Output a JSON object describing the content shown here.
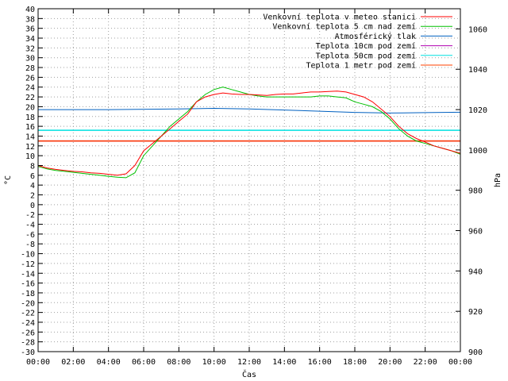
{
  "chart_data": {
    "type": "line",
    "xlabel": "Čas",
    "ylabel": "°C",
    "y2label": "hPa",
    "x_ticks": [
      "00:00",
      "02:00",
      "04:00",
      "06:00",
      "08:00",
      "10:00",
      "12:00",
      "14:00",
      "16:00",
      "18:00",
      "20:00",
      "22:00",
      "00:00"
    ],
    "xlim": [
      0,
      24
    ],
    "ylim": [
      -30,
      40
    ],
    "y_ticks": [
      40,
      38,
      36,
      34,
      32,
      30,
      28,
      26,
      24,
      22,
      20,
      18,
      16,
      14,
      12,
      10,
      8,
      6,
      4,
      2,
      0,
      -2,
      -4,
      -6,
      -8,
      -10,
      -12,
      -14,
      -16,
      -18,
      -20,
      -22,
      -24,
      -26,
      -28,
      -30
    ],
    "y2lim": [
      900,
      1070
    ],
    "y2_ticks": [
      1060,
      1040,
      1020,
      1000,
      980,
      960,
      940,
      920,
      900
    ],
    "legend_position": "top-right",
    "series": [
      {
        "name": "Venkovní teplota v meteo stanici",
        "color": "#ff0000",
        "axis": "y",
        "x": [
          0,
          0.5,
          1,
          1.5,
          2,
          2.5,
          3,
          3.5,
          4,
          4.5,
          5,
          5.5,
          6,
          6.5,
          7,
          7.5,
          8,
          8.5,
          9,
          9.5,
          10,
          10.5,
          11,
          11.5,
          12,
          12.5,
          13,
          13.5,
          14,
          14.5,
          15,
          15.5,
          16,
          16.5,
          17,
          17.5,
          18,
          18.5,
          19,
          19.5,
          20,
          20.5,
          21,
          21.5,
          22,
          22.5,
          23,
          23.5,
          24
        ],
        "y": [
          8,
          7.5,
          7.2,
          7,
          6.8,
          6.7,
          6.5,
          6.4,
          6.2,
          6,
          6.3,
          8,
          11,
          12.5,
          14,
          15.5,
          17,
          18.5,
          21,
          22,
          22.5,
          22.8,
          22.6,
          22.5,
          22.5,
          22.4,
          22.3,
          22.5,
          22.6,
          22.6,
          22.8,
          23,
          23,
          23.1,
          23.2,
          23,
          22.5,
          22,
          21,
          19.5,
          18,
          16,
          14.5,
          13.5,
          12.8,
          12,
          11.5,
          11,
          10.5
        ]
      },
      {
        "name": "Venkovní teplota 5 cm nad zemí",
        "color": "#00c000",
        "axis": "y",
        "x": [
          0,
          0.5,
          1,
          1.5,
          2,
          2.5,
          3,
          3.5,
          4,
          4.5,
          5,
          5.5,
          6,
          6.5,
          7,
          7.5,
          8,
          8.5,
          9,
          9.5,
          10,
          10.5,
          11,
          11.5,
          12,
          12.5,
          13,
          13.5,
          14,
          14.5,
          15,
          15.5,
          16,
          16.5,
          17,
          17.5,
          18,
          18.5,
          19,
          19.5,
          20,
          20.5,
          21,
          21.5,
          22,
          22.5,
          23,
          23.5,
          24
        ],
        "y": [
          7.8,
          7.3,
          7,
          6.8,
          6.6,
          6.4,
          6.2,
          6,
          5.8,
          5.6,
          5.5,
          6.5,
          10,
          12,
          14,
          16,
          17.5,
          19,
          21,
          22.5,
          23.5,
          24,
          23.5,
          23,
          22.5,
          22.2,
          22,
          22,
          22,
          22,
          22,
          22,
          22.2,
          22.2,
          22,
          21.8,
          21,
          20.5,
          20,
          19,
          17.5,
          15.5,
          14,
          13,
          12.5,
          12,
          11.5,
          11,
          10.3
        ]
      },
      {
        "name": "Atmosférický tlak",
        "color": "#0060c0",
        "axis": "y2",
        "x": [
          0,
          4,
          8,
          10,
          12,
          14,
          16,
          18,
          20,
          22,
          24
        ],
        "y": [
          1020,
          1020,
          1020.3,
          1020.6,
          1020.3,
          1019.8,
          1019.2,
          1018.6,
          1018.3,
          1018.5,
          1018.7
        ]
      },
      {
        "name": "Teplota 10cm pod zemí",
        "color": "#b000b0",
        "axis": "y",
        "x": [
          0,
          24
        ],
        "y": [
          13,
          13
        ]
      },
      {
        "name": "Teplota 50cm pod zemí",
        "color": "#00e0e0",
        "axis": "y",
        "x": [
          0,
          24
        ],
        "y": [
          15.2,
          15.2
        ]
      },
      {
        "name": "Teplota 1 metr pod zemí",
        "color": "#ff4000",
        "axis": "y",
        "x": [
          0,
          24
        ],
        "y": [
          13,
          13
        ]
      }
    ]
  }
}
